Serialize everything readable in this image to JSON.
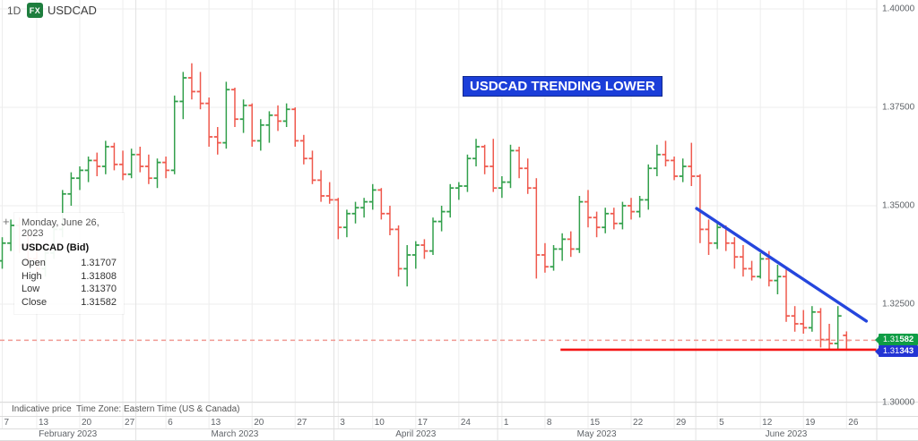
{
  "header": {
    "timeframe": "1D",
    "logo_text": "FX",
    "symbol": "USDCAD"
  },
  "annotation": {
    "text": "USDCAD TRENDING LOWER"
  },
  "tooltip": {
    "date": "Monday, June 26, 2023",
    "title": "USDCAD (Bid)",
    "rows": [
      {
        "label": "Open",
        "value": "1.31707"
      },
      {
        "label": "High",
        "value": "1.31808"
      },
      {
        "label": "Low",
        "value": "1.31370"
      },
      {
        "label": "Close",
        "value": "1.31582"
      }
    ]
  },
  "footer": {
    "indicative": "Indicative price",
    "timezone": "Time Zone: Eastern Time (US & Canada)"
  },
  "icons": {
    "crosshair": "+"
  },
  "price_tags": {
    "current": {
      "prefix": "1.31",
      "bold": "582"
    },
    "support": {
      "prefix": "1.31",
      "bold": "343"
    }
  },
  "colors": {
    "up": "#33a04c",
    "down": "#ef5a4e",
    "trendline": "#2546dd",
    "support_line": "#f51515",
    "dashed_line": "#f09a93",
    "grid": "#ededed",
    "grid_month": "#e2e2e2",
    "border": "#dcdcdc",
    "annotation_bg": "#1b3ed9",
    "logo_bg": "#1e7e3e",
    "tag_current_bg": "#0f9d45",
    "tag_support_bg": "#2334d4"
  },
  "chart_data": {
    "type": "ohlc-bar",
    "symbol": "USDCAD",
    "timeframe": "1D",
    "ylim": [
      1.3,
      1.40227
    ],
    "grid": "on",
    "price_gridlines": [
      {
        "label": "1.40000",
        "price": 1.4
      },
      {
        "label": "1.37500",
        "price": 1.375
      },
      {
        "label": "1.35000",
        "price": 1.35
      },
      {
        "label": "1.32500",
        "price": 1.325
      },
      {
        "label": "1.30000",
        "price": 1.3
      }
    ],
    "day_ticks": [
      {
        "label": "7",
        "i": 0
      },
      {
        "label": "13",
        "i": 4
      },
      {
        "label": "20",
        "i": 9
      },
      {
        "label": "27",
        "i": 14
      },
      {
        "label": "6",
        "i": 19
      },
      {
        "label": "13",
        "i": 24
      },
      {
        "label": "20",
        "i": 29
      },
      {
        "label": "27",
        "i": 34
      },
      {
        "label": "3",
        "i": 39
      },
      {
        "label": "10",
        "i": 43
      },
      {
        "label": "17",
        "i": 48
      },
      {
        "label": "24",
        "i": 53
      },
      {
        "label": "1",
        "i": 58
      },
      {
        "label": "8",
        "i": 63
      },
      {
        "label": "15",
        "i": 68
      },
      {
        "label": "22",
        "i": 73
      },
      {
        "label": "29",
        "i": 78
      },
      {
        "label": "5",
        "i": 83
      },
      {
        "label": "12",
        "i": 88
      },
      {
        "label": "19",
        "i": 93
      },
      {
        "label": "26",
        "i": 98
      }
    ],
    "months": [
      {
        "label": "February 2023",
        "from": -0.3,
        "to": 15.5
      },
      {
        "label": "March 2023",
        "from": 15.5,
        "to": 38.5
      },
      {
        "label": "April 2023",
        "from": 38.5,
        "to": 57.5
      },
      {
        "label": "May 2023",
        "from": 57.5,
        "to": 80.5
      },
      {
        "label": "June 2023",
        "from": 80.5,
        "to": 101.5
      }
    ],
    "dashed_price_line": 1.31582,
    "support_line": {
      "price": 1.31343,
      "from_index": 64.8
    },
    "trendline": {
      "from_index": 80.6,
      "from_price": 1.3493,
      "to_index": 100.3,
      "to_price": 1.3207
    },
    "bars": [
      [
        "Feb 7",
        1.336,
        1.342,
        1.334,
        1.3405
      ],
      [
        "Feb 8",
        1.3405,
        1.3465,
        1.3385,
        1.345
      ],
      [
        "Feb 9",
        1.345,
        1.347,
        1.338,
        1.34
      ],
      [
        "Feb 10",
        1.34,
        1.343,
        1.3345,
        1.3365
      ],
      [
        "Feb 13",
        1.3365,
        1.34,
        1.3325,
        1.334
      ],
      [
        "Feb 14",
        1.334,
        1.3395,
        1.332,
        1.338
      ],
      [
        "Feb 15",
        1.338,
        1.345,
        1.3365,
        1.344
      ],
      [
        "Feb 16",
        1.344,
        1.354,
        1.342,
        1.353
      ],
      [
        "Feb 17",
        1.353,
        1.3585,
        1.35,
        1.357
      ],
      [
        "Feb 20",
        1.357,
        1.36,
        1.354,
        1.359
      ],
      [
        "Feb 21",
        1.359,
        1.3625,
        1.356,
        1.3615
      ],
      [
        "Feb 22",
        1.3615,
        1.3635,
        1.3575,
        1.36
      ],
      [
        "Feb 23",
        1.36,
        1.3665,
        1.358,
        1.365
      ],
      [
        "Feb 24",
        1.365,
        1.366,
        1.359,
        1.3605
      ],
      [
        "Feb 27",
        1.3605,
        1.364,
        1.3565,
        1.358
      ],
      [
        "Feb 28",
        1.358,
        1.3645,
        1.357,
        1.363
      ],
      [
        "Mar 1",
        1.363,
        1.365,
        1.3585,
        1.36
      ],
      [
        "Mar 2",
        1.36,
        1.363,
        1.3555,
        1.357
      ],
      [
        "Mar 3",
        1.357,
        1.362,
        1.3545,
        1.361
      ],
      [
        "Mar 6",
        1.361,
        1.3625,
        1.357,
        1.359
      ],
      [
        "Mar 7",
        1.359,
        1.378,
        1.358,
        1.3765
      ],
      [
        "Mar 8",
        1.3765,
        1.384,
        1.372,
        1.3825
      ],
      [
        "Mar 9",
        1.3825,
        1.3862,
        1.377,
        1.379
      ],
      [
        "Mar 10",
        1.379,
        1.384,
        1.3745,
        1.376
      ],
      [
        "Mar 13",
        1.376,
        1.3775,
        1.365,
        1.3675
      ],
      [
        "Mar 14",
        1.3675,
        1.37,
        1.363,
        1.366
      ],
      [
        "Mar 15",
        1.366,
        1.3815,
        1.3645,
        1.3795
      ],
      [
        "Mar 16",
        1.3795,
        1.38,
        1.37,
        1.372
      ],
      [
        "Mar 17",
        1.372,
        1.377,
        1.3685,
        1.3755
      ],
      [
        "Mar 20",
        1.3755,
        1.376,
        1.365,
        1.3665
      ],
      [
        "Mar 21",
        1.3665,
        1.372,
        1.364,
        1.3705
      ],
      [
        "Mar 22",
        1.3705,
        1.374,
        1.366,
        1.373
      ],
      [
        "Mar 23",
        1.373,
        1.3755,
        1.369,
        1.3715
      ],
      [
        "Mar 24",
        1.3715,
        1.376,
        1.37,
        1.3745
      ],
      [
        "Mar 27",
        1.3745,
        1.375,
        1.365,
        1.3665
      ],
      [
        "Mar 28",
        1.3665,
        1.368,
        1.3605,
        1.362
      ],
      [
        "Mar 29",
        1.362,
        1.364,
        1.3555,
        1.3565
      ],
      [
        "Mar 30",
        1.3565,
        1.359,
        1.351,
        1.3525
      ],
      [
        "Mar 31",
        1.3525,
        1.356,
        1.3505,
        1.3515
      ],
      [
        "Apr 3",
        1.3515,
        1.352,
        1.3415,
        1.3445
      ],
      [
        "Apr 4",
        1.3445,
        1.349,
        1.342,
        1.348
      ],
      [
        "Apr 5",
        1.348,
        1.351,
        1.3455,
        1.3495
      ],
      [
        "Apr 6",
        1.3495,
        1.352,
        1.347,
        1.351
      ],
      [
        "Apr 10",
        1.351,
        1.3555,
        1.349,
        1.354
      ],
      [
        "Apr 11",
        1.354,
        1.3545,
        1.3465,
        1.348
      ],
      [
        "Apr 12",
        1.348,
        1.35,
        1.3425,
        1.344
      ],
      [
        "Apr 13",
        1.344,
        1.345,
        1.332,
        1.334
      ],
      [
        "Apr 14",
        1.334,
        1.34,
        1.3295,
        1.3375
      ],
      [
        "Apr 17",
        1.3375,
        1.341,
        1.334,
        1.34
      ],
      [
        "Apr 18",
        1.34,
        1.3415,
        1.3365,
        1.3385
      ],
      [
        "Apr 19",
        1.3385,
        1.347,
        1.3375,
        1.346
      ],
      [
        "Apr 20",
        1.346,
        1.35,
        1.3435,
        1.3485
      ],
      [
        "Apr 21",
        1.3485,
        1.3555,
        1.347,
        1.3545
      ],
      [
        "Apr 24",
        1.3545,
        1.356,
        1.3515,
        1.355
      ],
      [
        "Apr 25",
        1.355,
        1.363,
        1.3535,
        1.362
      ],
      [
        "Apr 26",
        1.362,
        1.367,
        1.36,
        1.365
      ],
      [
        "Apr 27",
        1.365,
        1.3655,
        1.358,
        1.36
      ],
      [
        "Apr 28",
        1.36,
        1.367,
        1.3535,
        1.3545
      ],
      [
        "May 1",
        1.3545,
        1.3575,
        1.352,
        1.356
      ],
      [
        "May 2",
        1.356,
        1.3655,
        1.3545,
        1.364
      ],
      [
        "May 3",
        1.364,
        1.365,
        1.357,
        1.3595
      ],
      [
        "May 4",
        1.3595,
        1.362,
        1.353,
        1.3545
      ],
      [
        "May 5",
        1.3545,
        1.357,
        1.3315,
        1.3375
      ],
      [
        "May 8",
        1.3375,
        1.3405,
        1.333,
        1.3345
      ],
      [
        "May 9",
        1.3345,
        1.34,
        1.3335,
        1.339
      ],
      [
        "May 10",
        1.339,
        1.343,
        1.336,
        1.3415
      ],
      [
        "May 11",
        1.3415,
        1.3435,
        1.337,
        1.339
      ],
      [
        "May 12",
        1.339,
        1.3525,
        1.338,
        1.351
      ],
      [
        "May 15",
        1.351,
        1.354,
        1.3445,
        1.347
      ],
      [
        "May 16",
        1.347,
        1.3485,
        1.342,
        1.3445
      ],
      [
        "May 17",
        1.3445,
        1.3495,
        1.343,
        1.348
      ],
      [
        "May 18",
        1.348,
        1.3495,
        1.344,
        1.3455
      ],
      [
        "May 19",
        1.3455,
        1.351,
        1.344,
        1.35
      ],
      [
        "May 22",
        1.35,
        1.352,
        1.3465,
        1.3485
      ],
      [
        "May 23",
        1.3485,
        1.3525,
        1.347,
        1.3515
      ],
      [
        "May 24",
        1.3515,
        1.3605,
        1.349,
        1.3595
      ],
      [
        "May 25",
        1.3595,
        1.3655,
        1.3575,
        1.363
      ],
      [
        "May 26",
        1.363,
        1.3665,
        1.36,
        1.3615
      ],
      [
        "May 29",
        1.3615,
        1.3625,
        1.3565,
        1.3575
      ],
      [
        "May 30",
        1.3575,
        1.362,
        1.356,
        1.36
      ],
      [
        "May 31",
        1.36,
        1.366,
        1.355,
        1.3575
      ],
      [
        "Jun 1",
        1.3575,
        1.358,
        1.3405,
        1.344
      ],
      [
        "Jun 2",
        1.344,
        1.3465,
        1.3375,
        1.3405
      ],
      [
        "Jun 5",
        1.3405,
        1.346,
        1.339,
        1.3445
      ],
      [
        "Jun 6",
        1.3445,
        1.345,
        1.3385,
        1.3405
      ],
      [
        "Jun 7",
        1.3405,
        1.342,
        1.334,
        1.337
      ],
      [
        "Jun 8",
        1.337,
        1.34,
        1.332,
        1.334
      ],
      [
        "Jun 9",
        1.334,
        1.336,
        1.331,
        1.332
      ],
      [
        "Jun 12",
        1.332,
        1.338,
        1.3315,
        1.3365
      ],
      [
        "Jun 13",
        1.3365,
        1.3385,
        1.3295,
        1.331
      ],
      [
        "Jun 14",
        1.331,
        1.335,
        1.3275,
        1.332
      ],
      [
        "Jun 15",
        1.332,
        1.3345,
        1.3205,
        1.322
      ],
      [
        "Jun 16",
        1.322,
        1.3245,
        1.318,
        1.32
      ],
      [
        "Jun 19",
        1.32,
        1.3235,
        1.3175,
        1.319
      ],
      [
        "Jun 20",
        1.319,
        1.3245,
        1.318,
        1.323
      ],
      [
        "Jun 21",
        1.323,
        1.324,
        1.314,
        1.316
      ],
      [
        "Jun 22",
        1.316,
        1.32,
        1.3134,
        1.315
      ],
      [
        "Jun 23",
        1.315,
        1.3245,
        1.3136,
        1.322
      ],
      [
        "Jun 26",
        1.31707,
        1.31808,
        1.3137,
        1.31582
      ]
    ]
  }
}
